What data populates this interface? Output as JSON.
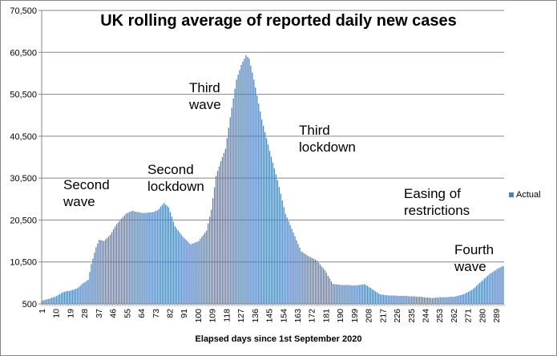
{
  "chart_data": {
    "type": "bar",
    "title": "UK rolling average of  reported daily new cases",
    "xlabel": "Elapsed days since 1st September 2020",
    "ylabel": "",
    "ylim": [
      500,
      70500
    ],
    "y_ticks": [
      500,
      10500,
      20500,
      30500,
      40500,
      50500,
      60500,
      70500
    ],
    "y_tick_labels": [
      "500",
      "10,500",
      "20,500",
      "30,500",
      "40,500",
      "50,500",
      "60,500",
      "70,500"
    ],
    "x_tick_labels": [
      "1",
      "10",
      "19",
      "28",
      "37",
      "46",
      "55",
      "64",
      "73",
      "82",
      "91",
      "100",
      "109",
      "118",
      "127",
      "136",
      "145",
      "154",
      "163",
      "172",
      "181",
      "190",
      "199",
      "208",
      "217",
      "226",
      "235",
      "244",
      "253",
      "262",
      "271",
      "280",
      "289"
    ],
    "grid": true,
    "legend_position": "right",
    "series": [
      {
        "name": "Actual",
        "color": "#4F81BD",
        "values": [
          1300,
          1400,
          1500,
          1600,
          1700,
          1800,
          2000,
          2100,
          2200,
          2400,
          2600,
          2800,
          3100,
          3300,
          3400,
          3500,
          3600,
          3600,
          3700,
          3800,
          3900,
          4100,
          4200,
          4500,
          4800,
          5200,
          5500,
          5700,
          6000,
          6200,
          8100,
          10000,
          11300,
          12700,
          14000,
          14900,
          15800,
          15700,
          15600,
          15500,
          15900,
          16200,
          16600,
          17000,
          17600,
          18300,
          18900,
          19500,
          19900,
          20300,
          20800,
          21200,
          21600,
          22000,
          22200,
          22400,
          22500,
          22700,
          22600,
          22500,
          22400,
          22400,
          22300,
          22200,
          22200,
          22200,
          22200,
          22300,
          22300,
          22300,
          22400,
          22500,
          22700,
          22800,
          23200,
          23700,
          24100,
          24600,
          24200,
          23900,
          23500,
          22400,
          21300,
          20100,
          19000,
          18500,
          18000,
          17500,
          17000,
          16500,
          16100,
          15800,
          15400,
          15000,
          14700,
          14900,
          15000,
          15200,
          15300,
          15500,
          16000,
          16500,
          17000,
          17500,
          18000,
          19700,
          21300,
          23000,
          25700,
          28300,
          31000,
          32200,
          33300,
          34500,
          35500,
          36500,
          37500,
          40000,
          42500,
          45000,
          47300,
          49500,
          51800,
          54000,
          55200,
          56300,
          57500,
          58300,
          59000,
          59800,
          59400,
          59000,
          57300,
          55700,
          54000,
          52100,
          50200,
          48300,
          46400,
          44500,
          43000,
          41500,
          40000,
          38500,
          37000,
          35600,
          34200,
          32800,
          31400,
          30000,
          28400,
          26800,
          25200,
          23600,
          22000,
          21100,
          20200,
          19300,
          18400,
          17500,
          16600,
          15700,
          14800,
          13900,
          13000,
          12800,
          12500,
          12300,
          12000,
          11800,
          11600,
          11400,
          11200,
          11000,
          10800,
          10300,
          9900,
          9400,
          9000,
          8500,
          7900,
          7200,
          6600,
          5900,
          5300,
          5200,
          5200,
          5100,
          5100,
          5000,
          5000,
          5000,
          5000,
          5000,
          5000,
          5000,
          4900,
          4900,
          4900,
          4900,
          5000,
          5000,
          5100,
          5100,
          5200,
          5000,
          4800,
          4500,
          4300,
          4000,
          3800,
          3500,
          3300,
          3000,
          2800,
          2700,
          2700,
          2600,
          2600,
          2500,
          2500,
          2500,
          2500,
          2500,
          2500,
          2400,
          2400,
          2400,
          2400,
          2400,
          2400,
          2400,
          2300,
          2300,
          2300,
          2300,
          2300,
          2200,
          2200,
          2200,
          2200,
          2100,
          2100,
          2000,
          2000,
          2000,
          1900,
          1900,
          1900,
          2000,
          2000,
          2000,
          2100,
          2100,
          2100,
          2100,
          2100,
          2100,
          2200,
          2200,
          2200,
          2200,
          2300,
          2400,
          2500,
          2600,
          2700,
          2800,
          3000,
          3200,
          3400,
          3600,
          3800,
          4100,
          4400,
          4800,
          5100,
          5500,
          5800,
          6100,
          6500,
          6800,
          7200,
          7500,
          7800,
          8000,
          8300,
          8500,
          8800,
          9000,
          9200,
          9400,
          9500
        ]
      }
    ],
    "annotations": [
      "Second\nwave",
      "Second\nlockdown",
      "Third\nwave",
      "Third\nlockdown",
      "Easing of\nrestrictions",
      "Fourth\nwave"
    ]
  }
}
